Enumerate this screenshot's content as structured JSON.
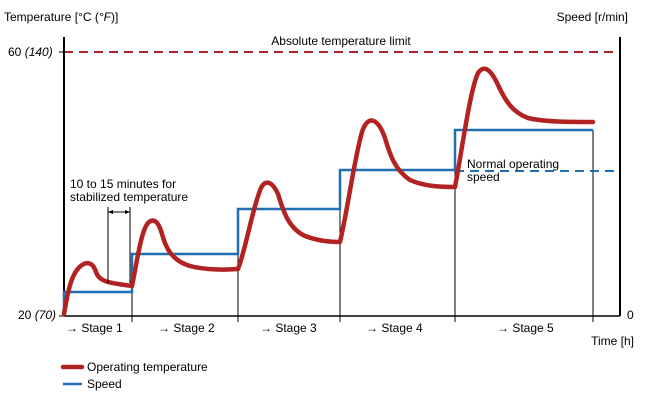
{
  "chart_data": {
    "type": "line",
    "y_left_label": "Temperature [°C (°F)]",
    "y_left_label_main": "Temperature [°C (",
    "y_left_label_italic": "°F",
    "y_left_label_end": ")]",
    "y_right_label": "Speed [r/min]",
    "x_label": "Time [h]",
    "y_left_ticks": [
      {
        "main": "60",
        "italic": "(140)"
      },
      {
        "main": "20",
        "italic": "(70)"
      }
    ],
    "y_right_ticks": [
      "0"
    ],
    "limit_label": "Absolute temperature limit",
    "annotation_stabilize": [
      "10 to 15 minutes for",
      "stabilized temperature"
    ],
    "annotation_normal": [
      "Normal operating",
      "speed"
    ],
    "stages": [
      "→ Stage 1",
      "→ Stage 2",
      "→ Stage 3",
      "→ Stage 4",
      "→ Stage 5"
    ],
    "series": [
      {
        "name": "Operating temperature",
        "color": "#b22222"
      },
      {
        "name": "Speed",
        "color": "#1f6fb5"
      }
    ],
    "ylim_temperature_c": [
      20,
      60
    ],
    "grid": false
  }
}
